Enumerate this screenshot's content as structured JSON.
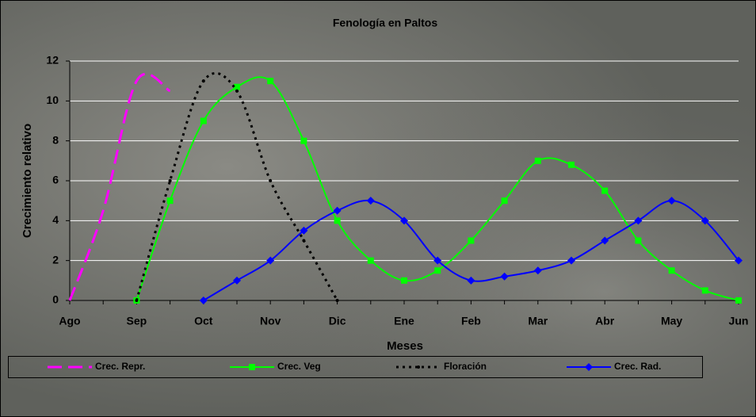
{
  "chart_data": {
    "type": "line",
    "title": "Fenología en Paltos",
    "x_label": "Meses",
    "y_label": "Crecimiento relativo",
    "categories": [
      "Ago",
      null,
      "Sep",
      null,
      "Oct",
      null,
      "Nov",
      null,
      "Dic",
      null,
      "Ene",
      null,
      "Feb",
      null,
      "Mar",
      null,
      "Abr",
      null,
      "May",
      null,
      "Jun"
    ],
    "series": [
      {
        "name": "Crec. Repr.",
        "color": "#ff00ff",
        "line_style": "dashed",
        "marker": "none",
        "values": [
          0,
          4.5,
          11,
          10.5,
          null,
          null,
          null,
          null,
          null,
          null,
          null,
          null,
          null,
          null,
          null,
          null,
          null,
          null,
          null,
          null,
          null
        ]
      },
      {
        "name": "Crec. Veg",
        "color": "#00ff00",
        "line_style": "solid",
        "marker": "square",
        "values": [
          null,
          null,
          0,
          5,
          9,
          10.7,
          11,
          8,
          4,
          2,
          1,
          1.5,
          3,
          5,
          7,
          6.8,
          5.5,
          3,
          1.5,
          0.5,
          0
        ]
      },
      {
        "name": "Floración",
        "color": "#000000",
        "line_style": "dotted",
        "marker": "circle",
        "values": [
          null,
          null,
          0,
          6,
          11,
          10.5,
          6,
          3,
          0,
          null,
          null,
          null,
          null,
          null,
          null,
          null,
          null,
          null,
          null,
          null,
          null
        ]
      },
      {
        "name": "Crec. Rad.",
        "color": "#0000ff",
        "line_style": "solid",
        "marker": "diamond",
        "values": [
          null,
          null,
          null,
          null,
          0,
          1,
          2,
          3.5,
          4.5,
          5,
          4,
          2,
          1,
          1.2,
          1.5,
          2,
          3,
          4,
          5,
          4,
          2
        ]
      }
    ],
    "ylim": [
      0,
      12
    ],
    "yticks": [
      0,
      2,
      4,
      6,
      8,
      10,
      12
    ],
    "grid": true,
    "smooth": true,
    "legend": "bottom"
  }
}
